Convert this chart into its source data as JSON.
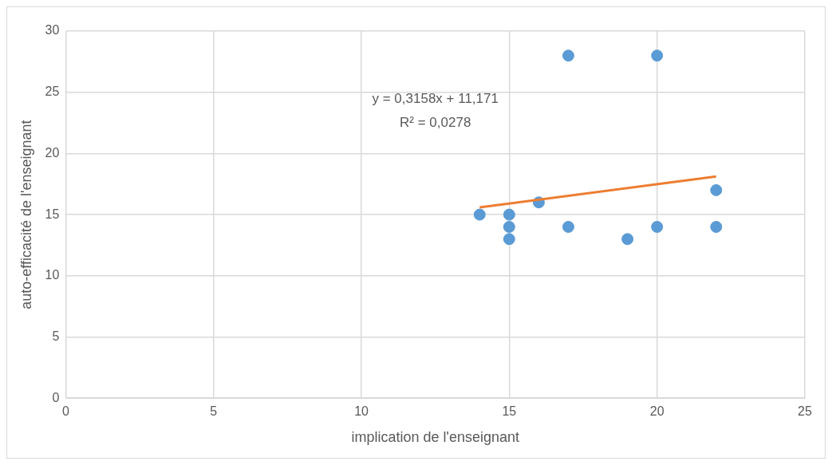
{
  "chart_data": {
    "type": "scatter",
    "xlabel": "implication de l'enseignant",
    "ylabel": "auto-efficacité de l'enseignant",
    "xlim": [
      0,
      25
    ],
    "xticks": [
      0,
      5,
      10,
      15,
      20,
      25
    ],
    "ylim": [
      0,
      30
    ],
    "yticks": [
      0,
      5,
      10,
      15,
      20,
      25,
      30
    ],
    "grid": true,
    "legend": false,
    "annotations": [
      "y = 0,3158x + 11,171",
      "R² = 0,0278"
    ],
    "series": [
      {
        "marker": "circle",
        "color": "#5b9bd5",
        "x": [
          14,
          15,
          15,
          15,
          16,
          17,
          17,
          19,
          20,
          20,
          22,
          22
        ],
        "values": [
          15,
          15,
          14,
          13,
          16,
          28,
          14,
          13,
          28,
          14,
          17,
          14
        ]
      },
      {
        "type": "line",
        "marker": "none",
        "color": "#ed7d31",
        "x": [
          14,
          22
        ],
        "values": [
          15.59,
          18.12
        ]
      }
    ]
  }
}
